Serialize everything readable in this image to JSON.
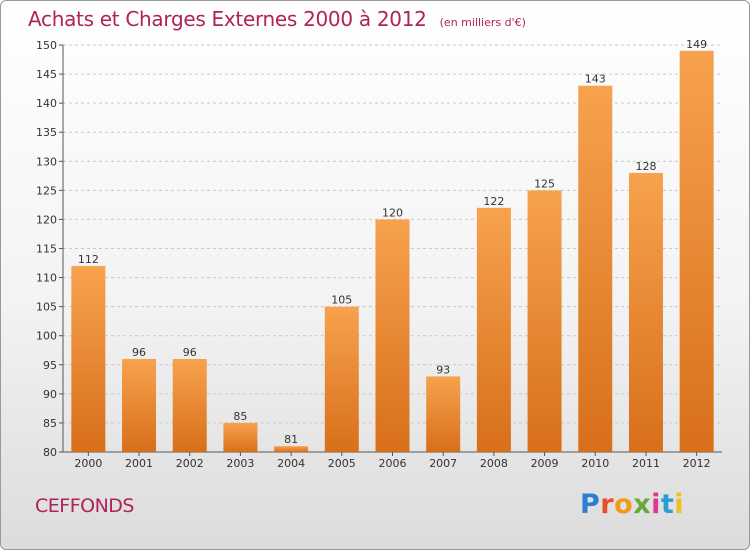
{
  "title": "Achats et Charges Externes 2000 à 2012",
  "title_unit": "(en milliers d'€)",
  "town": "CEFFONDS",
  "logo": {
    "text": "Proxiti",
    "letters": [
      "P",
      "r",
      "o",
      "x",
      "i",
      "t",
      "i"
    ]
  },
  "colors": {
    "title": "#b0225a",
    "bar_top": "#f7a24e",
    "bar_bottom": "#d86f1a"
  },
  "chart_data": {
    "type": "bar",
    "categories": [
      "2000",
      "2001",
      "2002",
      "2003",
      "2004",
      "2005",
      "2006",
      "2007",
      "2008",
      "2009",
      "2010",
      "2011",
      "2012"
    ],
    "values": [
      112,
      96,
      96,
      85,
      81,
      105,
      120,
      93,
      122,
      125,
      143,
      128,
      149
    ],
    "data_labels": [
      "112",
      "96",
      "96",
      "85",
      "81",
      "105",
      "120",
      "93",
      "122",
      "125",
      "143",
      "128",
      "149"
    ],
    "yticks": [
      80,
      85,
      90,
      95,
      100,
      105,
      110,
      115,
      120,
      125,
      130,
      135,
      140,
      145,
      150
    ],
    "ylim": [
      80,
      150
    ],
    "grid": true,
    "xlabel": "",
    "ylabel": ""
  }
}
